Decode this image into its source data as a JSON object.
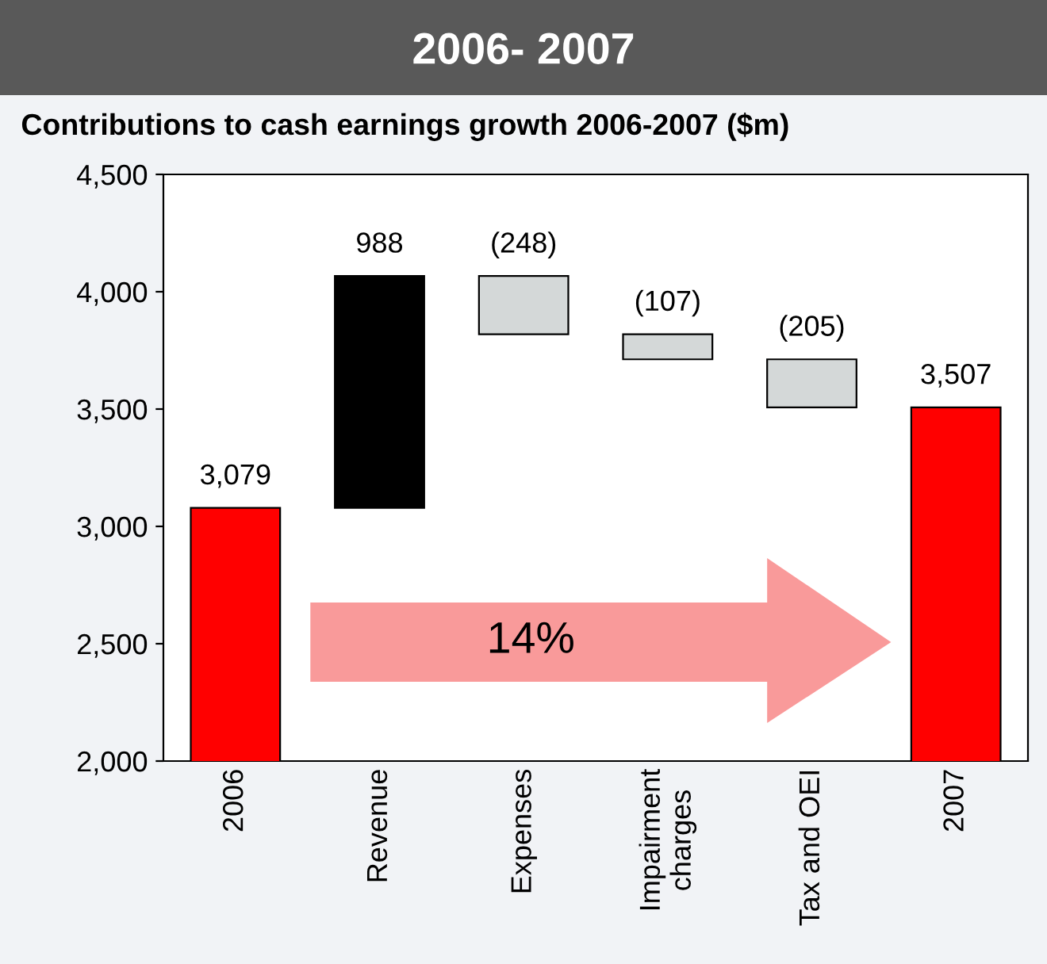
{
  "chart_data": {
    "type": "bar",
    "title": "2006- 2007",
    "subtitle": "Contributions to cash earnings growth 2006-2007 ($m)",
    "categories": [
      "2006",
      "Revenue",
      "Expenses",
      "Impairment\ncharges",
      "Tax and OEI",
      "2007"
    ],
    "values": [
      3079,
      988,
      -248,
      -107,
      -205,
      3507
    ],
    "base": [
      null,
      3079,
      4067,
      3819,
      3712,
      null
    ],
    "colors": [
      "#ff0000",
      "#000000",
      "#d4d8d8",
      "#d4d8d8",
      "#d4d8d8",
      "#ff0000"
    ],
    "value_labels": [
      "3,079",
      "988",
      "(248)",
      "(107)",
      "(205)",
      "3,507"
    ],
    "ylim": [
      2000,
      4500
    ],
    "yticks": [
      {
        "value": 2000,
        "label": "2,000"
      },
      {
        "value": 2500,
        "label": "2,500"
      },
      {
        "value": 3000,
        "label": "3,000"
      },
      {
        "value": 3500,
        "label": "3,500"
      },
      {
        "value": 4000,
        "label": "4,000"
      },
      {
        "value": 4500,
        "label": "4,500"
      }
    ],
    "grid": false,
    "annotations": [
      "14%"
    ]
  }
}
